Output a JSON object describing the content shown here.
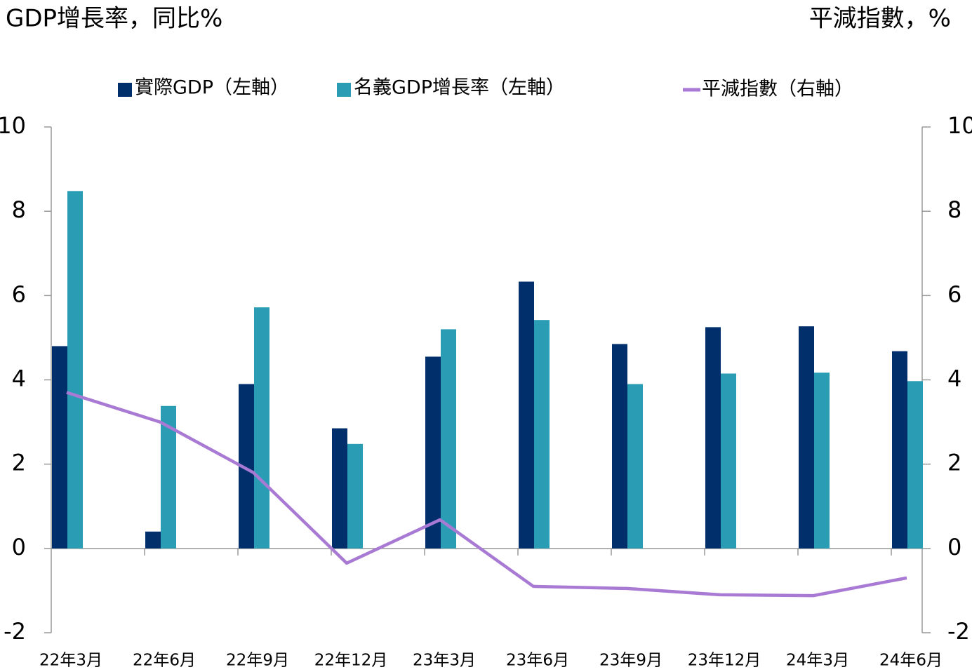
{
  "chart_data": {
    "type": "bar",
    "title": "GDP增長率，同比%",
    "y2_title": "平減指數，%",
    "categories": [
      "22年3月",
      "22年6月",
      "22年9月",
      "22年12月",
      "23年3月",
      "23年6月",
      "23年9月",
      "23年12月",
      "24年3月",
      "24年6月"
    ],
    "series": [
      {
        "name": "實際GDP（左軸）",
        "type": "bar",
        "color": "#002f6c",
        "values": [
          4.8,
          0.4,
          3.9,
          2.85,
          4.55,
          6.33,
          4.85,
          5.25,
          5.27,
          4.68
        ]
      },
      {
        "name": "名義GDP增長率（左軸）",
        "type": "bar",
        "color": "#2a9db5",
        "values": [
          8.48,
          3.38,
          5.72,
          2.48,
          5.2,
          5.42,
          3.9,
          4.15,
          4.17,
          3.97
        ]
      },
      {
        "name": "平減指數（右軸）",
        "type": "line",
        "axis": "y2",
        "color": "#a97ad4",
        "values": [
          3.7,
          3.0,
          1.8,
          -0.35,
          0.68,
          -0.9,
          -0.95,
          -1.1,
          -1.12,
          -0.7
        ]
      }
    ],
    "ylim": [
      -2,
      10
    ],
    "yticks": [
      -2,
      0,
      2,
      4,
      6,
      8,
      10
    ],
    "y2lim": [
      -2,
      10
    ],
    "y2ticks": [
      -2,
      0,
      2,
      4,
      6,
      8,
      10
    ]
  }
}
